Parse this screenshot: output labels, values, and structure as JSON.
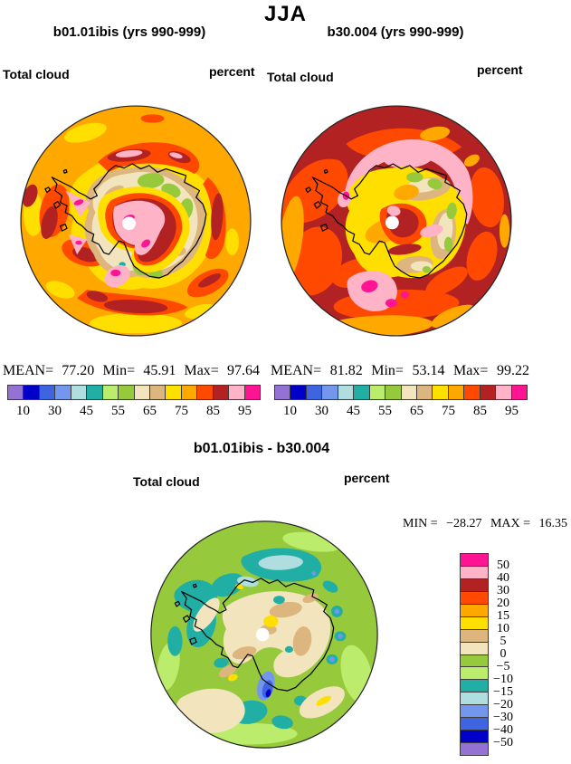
{
  "figure": {
    "title": "JJA"
  },
  "panels": [
    {
      "title": "b01.01ibis (yrs 990-999)",
      "field_label": "Total cloud",
      "units_label": "percent",
      "stats": {
        "mean_label": "MEAN=",
        "mean": "77.20",
        "min_label": "Min=",
        "min": "45.91",
        "max_label": "Max=",
        "max": "97.64"
      }
    },
    {
      "title": "b30.004 (yrs 990-999)",
      "field_label": "Total cloud",
      "units_label": "percent",
      "stats": {
        "mean_label": "MEAN=",
        "mean": "81.82",
        "min_label": "Min=",
        "min": "53.14",
        "max_label": "Max=",
        "max": "99.22"
      }
    }
  ],
  "diff_panel": {
    "title": "b01.01ibis - b30.004",
    "field_label": "Total cloud",
    "units_label": "percent",
    "stats": {
      "min_label": "MIN =",
      "min": "−28.27",
      "max_label": "MAX =",
      "max": "16.35"
    }
  },
  "colorbar": {
    "orientation": "horizontal",
    "colors": [
      "#9472D4",
      "#0000C8",
      "#3E64E0",
      "#7397EC",
      "#AFDDE0",
      "#21AFA5",
      "#BCEC6C",
      "#97C93C",
      "#F2E5BE",
      "#DDB57E",
      "#FFDF00",
      "#FFA800",
      "#FF4800",
      "#B22222",
      "#FFB3C6",
      "#FF1493"
    ],
    "tick_labels": [
      "10",
      "30",
      "45",
      "55",
      "65",
      "75",
      "85",
      "95"
    ],
    "tick_boundaries": [
      1,
      3,
      5,
      7,
      9,
      11,
      13,
      15
    ]
  },
  "diff_colorbar": {
    "orientation": "vertical",
    "colors_top_to_bottom": [
      "#FF1493",
      "#FFB3C6",
      "#B22222",
      "#FF4800",
      "#FFA800",
      "#FFDF00",
      "#DDB57E",
      "#F2E5BE",
      "#97C93C",
      "#BCEC6C",
      "#21AFA5",
      "#AFDDE0",
      "#7397EC",
      "#3E64E0",
      "#0000C8",
      "#9472D4"
    ],
    "tick_labels": [
      "50",
      "40",
      "30",
      "20",
      "15",
      "10",
      "5",
      "0",
      "−5",
      "−10",
      "−15",
      "−20",
      "−30",
      "−40",
      "−50"
    ]
  },
  "chart_data": [
    {
      "type": "heatmap",
      "subtype": "filled-contour-polar-stereographic-map",
      "region": "Antarctica / Southern Hemisphere",
      "season": "JJA",
      "title": "b01.01ibis (yrs 990-999)",
      "variable": "Total cloud",
      "units": "percent",
      "stats": {
        "mean": 77.2,
        "min": 45.91,
        "max": 97.64
      },
      "contour_levels": [
        10,
        20,
        30,
        40,
        45,
        50,
        55,
        60,
        65,
        70,
        75,
        80,
        85,
        90,
        95
      ],
      "legend_ticks": [
        10,
        30,
        45,
        55,
        65,
        75,
        85,
        95
      ],
      "legend_position": "below",
      "palette_low_to_high": [
        "#9472D4",
        "#0000C8",
        "#3E64E0",
        "#7397EC",
        "#AFDDE0",
        "#21AFA5",
        "#BCEC6C",
        "#97C93C",
        "#F2E5BE",
        "#DDB57E",
        "#FFDF00",
        "#FFA800",
        "#FF4800",
        "#B22222",
        "#FFB3C6",
        "#FF1493"
      ]
    },
    {
      "type": "heatmap",
      "subtype": "filled-contour-polar-stereographic-map",
      "region": "Antarctica / Southern Hemisphere",
      "season": "JJA",
      "title": "b30.004 (yrs 990-999)",
      "variable": "Total cloud",
      "units": "percent",
      "stats": {
        "mean": 81.82,
        "min": 53.14,
        "max": 99.22
      },
      "contour_levels": [
        10,
        20,
        30,
        40,
        45,
        50,
        55,
        60,
        65,
        70,
        75,
        80,
        85,
        90,
        95
      ],
      "legend_ticks": [
        10,
        30,
        45,
        55,
        65,
        75,
        85,
        95
      ],
      "legend_position": "below",
      "palette_low_to_high": [
        "#9472D4",
        "#0000C8",
        "#3E64E0",
        "#7397EC",
        "#AFDDE0",
        "#21AFA5",
        "#BCEC6C",
        "#97C93C",
        "#F2E5BE",
        "#DDB57E",
        "#FFDF00",
        "#FFA800",
        "#FF4800",
        "#B22222",
        "#FFB3C6",
        "#FF1493"
      ]
    },
    {
      "type": "heatmap",
      "subtype": "filled-contour-polar-stereographic-map",
      "region": "Antarctica / Southern Hemisphere",
      "season": "JJA",
      "title": "b01.01ibis - b30.004",
      "variable": "Total cloud difference",
      "units": "percent",
      "stats": {
        "min": -28.27,
        "max": 16.35
      },
      "contour_levels": [
        -50,
        -40,
        -30,
        -20,
        -15,
        -10,
        -5,
        0,
        5,
        10,
        15,
        20,
        30,
        40,
        50
      ],
      "legend_ticks": [
        50,
        40,
        30,
        20,
        15,
        10,
        5,
        0,
        -5,
        -10,
        -15,
        -20,
        -30,
        -40,
        -50
      ],
      "legend_position": "right-vertical",
      "palette_low_to_high": [
        "#9472D4",
        "#0000C8",
        "#3E64E0",
        "#7397EC",
        "#AFDDE0",
        "#21AFA5",
        "#BCEC6C",
        "#97C93C",
        "#F2E5BE",
        "#DDB57E",
        "#FFDF00",
        "#FFA800",
        "#FF4800",
        "#B22222",
        "#FFB3C6",
        "#FF1493"
      ]
    }
  ]
}
